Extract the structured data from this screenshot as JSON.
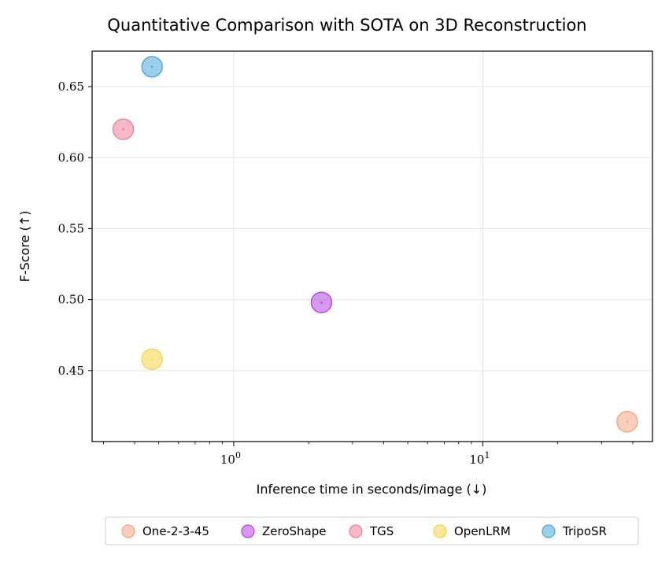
{
  "chart_data": {
    "type": "scatter",
    "title": "Quantitative Comparison with SOTA on 3D Reconstruction",
    "xlabel": "Inference time in seconds/image (↓)",
    "ylabel": "F-Score (↑)",
    "xscale": "log",
    "xlim": [
      0.27,
      48
    ],
    "ylim": [
      0.4,
      0.675
    ],
    "grid": true,
    "legend_position": "bottom",
    "x_ticks": [
      {
        "value": 1,
        "label_base": "10",
        "label_exp": "0"
      },
      {
        "value": 10,
        "label_base": "10",
        "label_exp": "1"
      }
    ],
    "y_ticks": [
      {
        "value": 0.45,
        "label": "0.45"
      },
      {
        "value": 0.5,
        "label": "0.50"
      },
      {
        "value": 0.55,
        "label": "0.55"
      },
      {
        "value": 0.6,
        "label": "0.60"
      },
      {
        "value": 0.65,
        "label": "0.65"
      }
    ],
    "series": [
      {
        "name": "One-2-3-45",
        "x": 38,
        "y": 0.414,
        "color": "#f4a582"
      },
      {
        "name": "ZeroShape",
        "x": 2.25,
        "y": 0.498,
        "color": "#b446e0"
      },
      {
        "name": "TGS",
        "x": 0.36,
        "y": 0.62,
        "color": "#ef7f99"
      },
      {
        "name": "OpenLRM",
        "x": 0.47,
        "y": 0.458,
        "color": "#f5d547"
      },
      {
        "name": "TripoSR",
        "x": 0.47,
        "y": 0.664,
        "color": "#4aa9d9"
      }
    ]
  }
}
